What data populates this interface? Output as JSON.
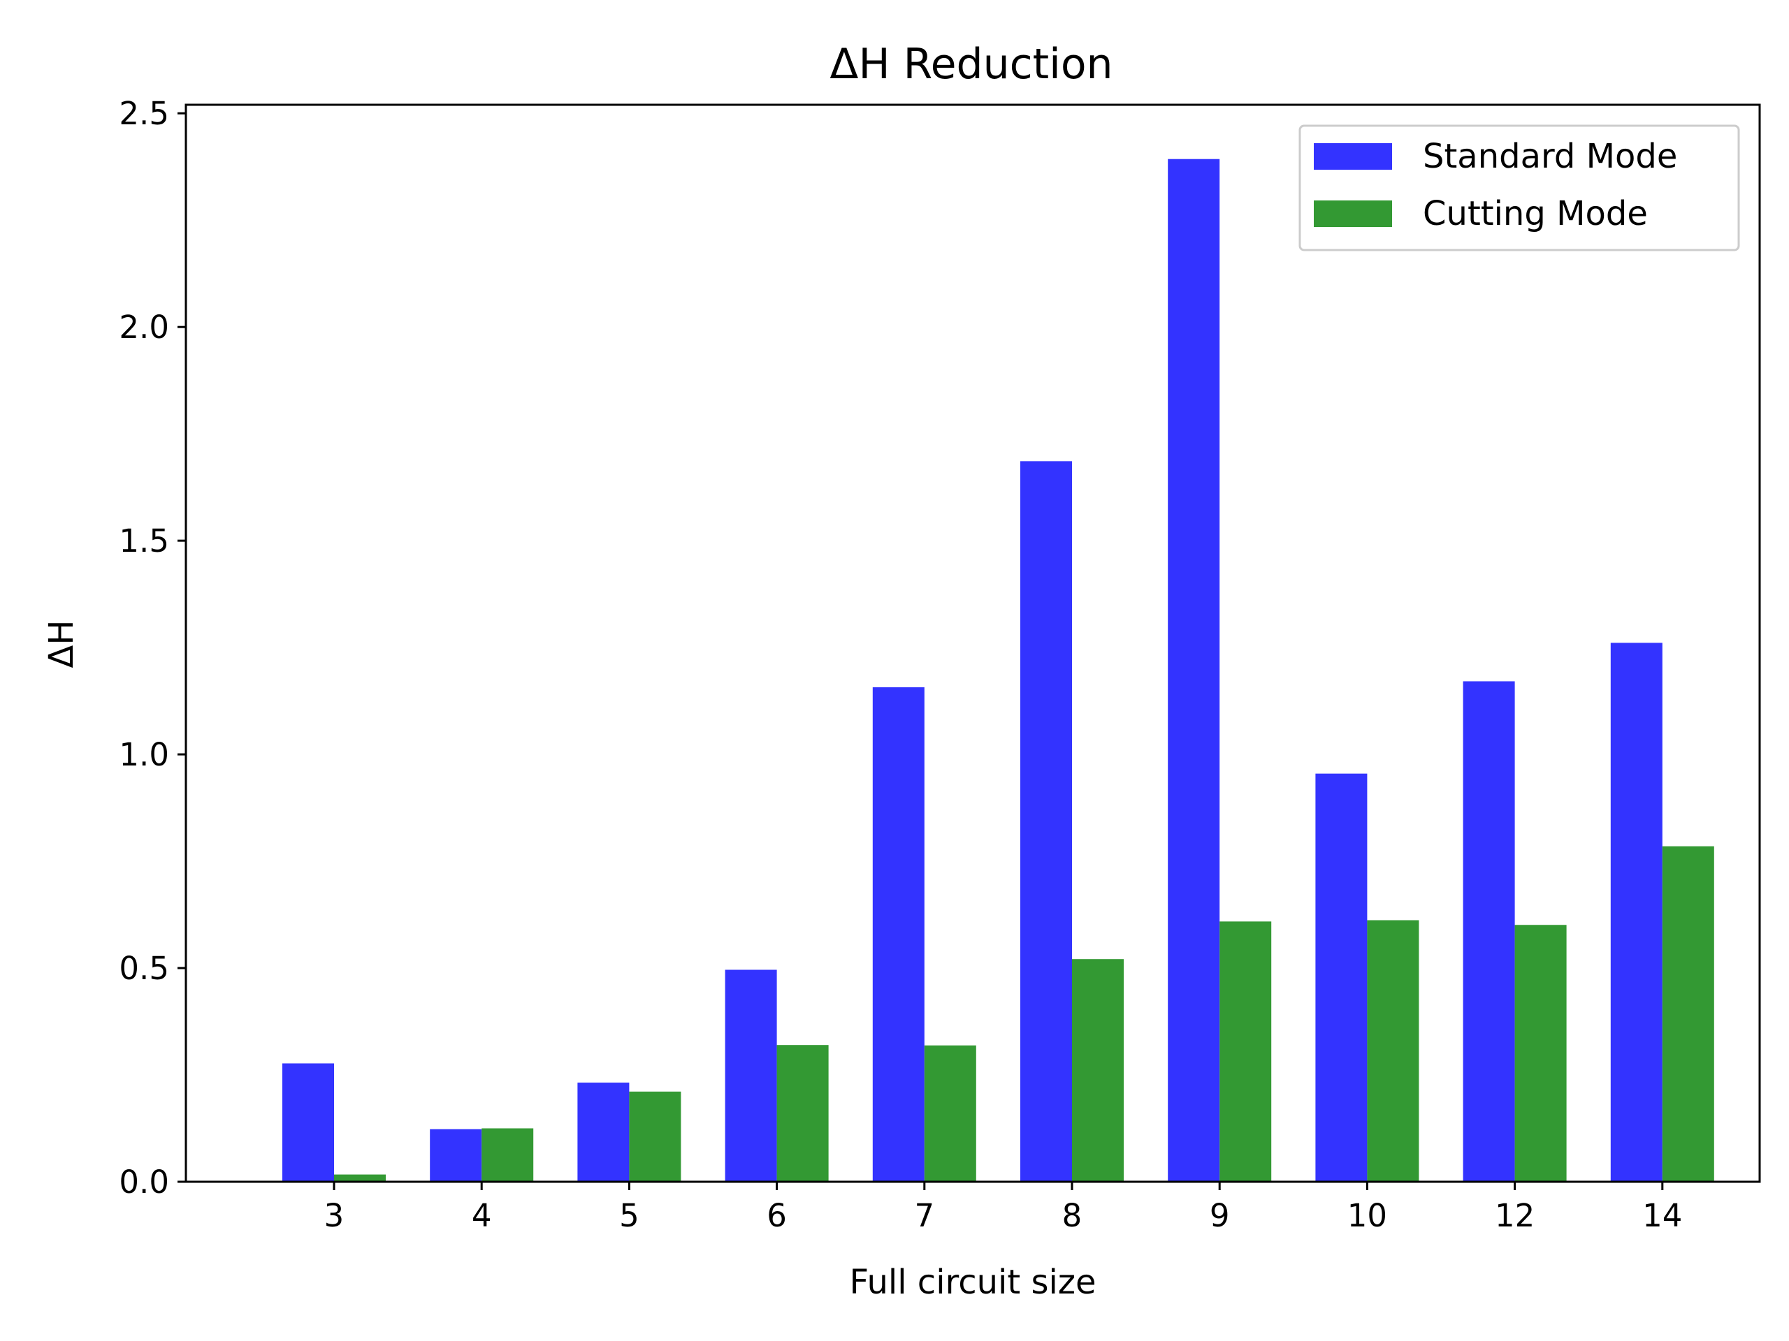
{
  "chart_data": {
    "type": "bar",
    "title": "ΔH Reduction",
    "xlabel": "Full circuit size",
    "ylabel": "ΔH",
    "categories": [
      "3",
      "4",
      "5",
      "6",
      "7",
      "8",
      "9",
      "10",
      "12",
      "14"
    ],
    "series": [
      {
        "name": "Standard Mode",
        "color": "#3333ff",
        "values": [
          0.277,
          0.123,
          0.232,
          0.496,
          1.157,
          1.686,
          2.393,
          0.955,
          1.171,
          1.261
        ]
      },
      {
        "name": "Cutting Mode",
        "color": "#339933",
        "values": [
          0.017,
          0.125,
          0.211,
          0.32,
          0.319,
          0.521,
          0.609,
          0.612,
          0.601,
          0.785
        ]
      }
    ],
    "ylim": [
      0,
      2.52
    ],
    "yticks": [
      "0.0",
      "0.5",
      "1.0",
      "1.5",
      "2.0",
      "2.5"
    ],
    "legend_position": "top-right",
    "grid": false
  }
}
